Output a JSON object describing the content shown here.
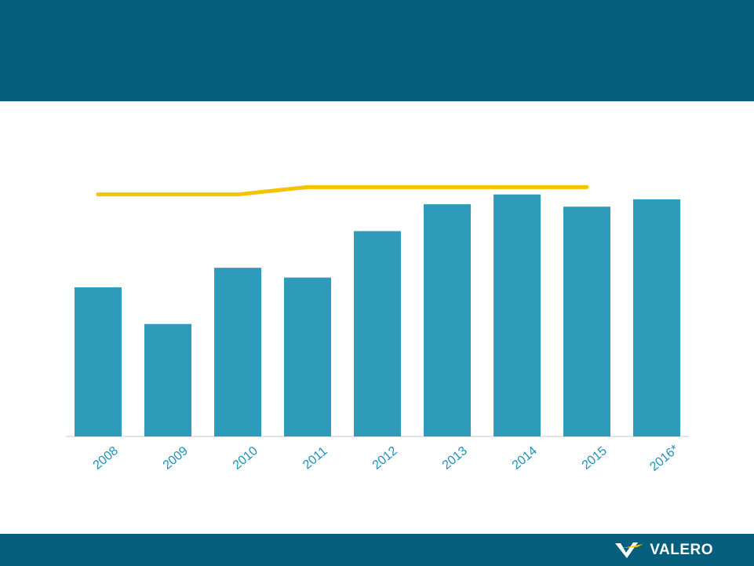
{
  "header": {
    "title": ""
  },
  "chart_data": {
    "type": "bar",
    "categories": [
      "2008",
      "2009",
      "2010",
      "2011",
      "2012",
      "2013",
      "2014",
      "2015",
      "2016*"
    ],
    "series": [
      {
        "values": [
          6.1,
          4.6,
          6.9,
          6.5,
          8.4,
          9.5,
          9.9,
          9.4,
          9.7
        ],
        "color": "#2E9BBA"
      }
    ],
    "line_series": [
      {
        "x": [
          "2008",
          "2010",
          "2011",
          "2015"
        ],
        "values": [
          9.9,
          9.9,
          10.2,
          10.2
        ],
        "color": "#F5C400"
      }
    ],
    "ylim": [
      0,
      14
    ],
    "grid": false,
    "legend": "none"
  },
  "brand": {
    "name": "VALERO",
    "colors": {
      "logo_mark": "#F5C400",
      "band": "#045E7C"
    }
  }
}
